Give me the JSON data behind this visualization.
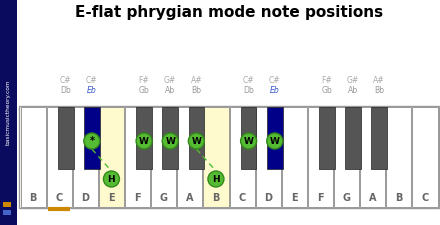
{
  "title": "E-flat phrygian mode note positions",
  "white_keys": [
    "B",
    "C",
    "D",
    "E",
    "F",
    "G",
    "A",
    "B",
    "C",
    "D",
    "E",
    "F",
    "G",
    "A",
    "B",
    "C"
  ],
  "num_white": 16,
  "bk_between": [
    1,
    2,
    4,
    5,
    6,
    8,
    9,
    11,
    12,
    13
  ],
  "highlighted_white_keys": [
    3,
    7
  ],
  "highlighted_white_color": "#FFFACD",
  "blue_black_keys": [
    1,
    6
  ],
  "bk_label_data": [
    {
      "labels": [
        "C#",
        "Db"
      ],
      "blue": false
    },
    {
      "labels": [
        "C#",
        "Eb"
      ],
      "blue": true
    },
    {
      "labels": [
        "F#",
        "Gb"
      ],
      "blue": false
    },
    {
      "labels": [
        "G#",
        "Ab"
      ],
      "blue": false
    },
    {
      "labels": [
        "A#",
        "Bb"
      ],
      "blue": false
    },
    {
      "labels": [
        "C#",
        "Db"
      ],
      "blue": false
    },
    {
      "labels": [
        "C#",
        "Eb"
      ],
      "blue": true
    },
    {
      "labels": [
        "F#",
        "Gb"
      ],
      "blue": false
    },
    {
      "labels": [
        "G#",
        "Ab"
      ],
      "blue": false
    },
    {
      "labels": [
        "A#",
        "Bb"
      ],
      "blue": false
    }
  ],
  "circles": [
    {
      "type": "black",
      "bk_idx": 1,
      "label": "*",
      "row": "top"
    },
    {
      "type": "white",
      "wk_idx": 3,
      "label": "H",
      "row": "bottom"
    },
    {
      "type": "black",
      "bk_idx": 2,
      "label": "W",
      "row": "top"
    },
    {
      "type": "black",
      "bk_idx": 3,
      "label": "W",
      "row": "top"
    },
    {
      "type": "black",
      "bk_idx": 4,
      "label": "W",
      "row": "top"
    },
    {
      "type": "white",
      "wk_idx": 7,
      "label": "H",
      "row": "bottom"
    },
    {
      "type": "black",
      "bk_idx": 5,
      "label": "W",
      "row": "top"
    },
    {
      "type": "black",
      "bk_idx": 6,
      "label": "W",
      "row": "top"
    }
  ],
  "lines": [
    {
      "from_bk": 1,
      "to_wk": 3
    },
    {
      "from_bk": 4,
      "to_wk": 7
    }
  ],
  "green_color": "#55BB33",
  "green_edge": "#33881A",
  "sidebar_color": "#0a0a5e",
  "sidebar_text": "basicmusictheory.com",
  "orange_color": "#CC8800",
  "blue_sq_color": "#4466cc",
  "background_color": "#ffffff",
  "title_fontsize": 11,
  "wk_label_fontsize": 7,
  "bk_label_fontsize": 5.5
}
